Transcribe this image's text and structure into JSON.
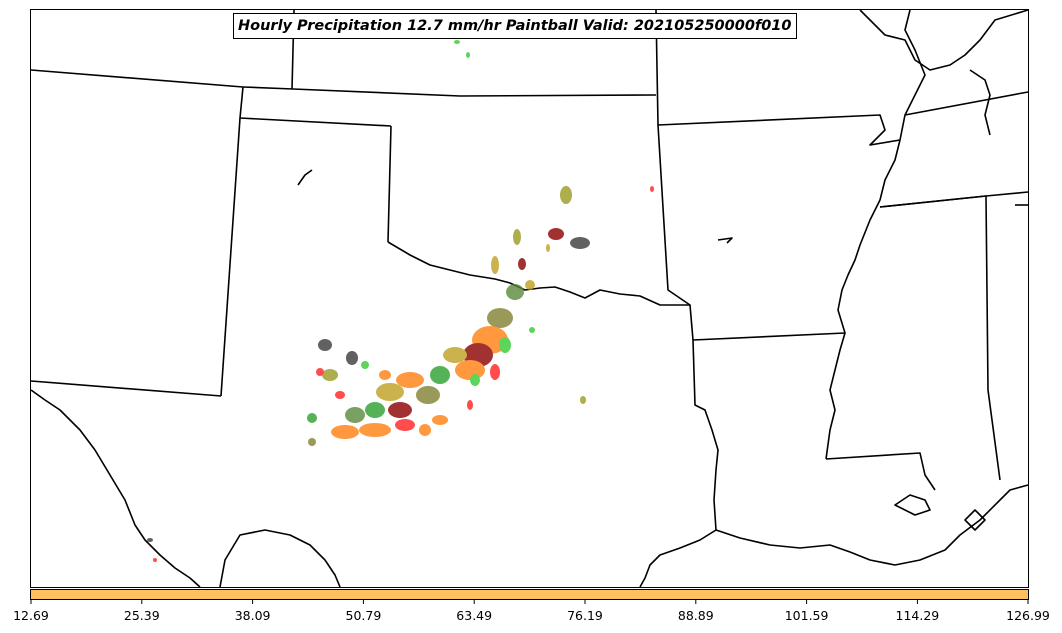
{
  "title": "Hourly Precipitation 12.7 mm/hr Paintball Valid: 202105250000f010",
  "colorbar": {
    "color": "#ffc060",
    "ticks": [
      "12.69",
      "25.39",
      "38.09",
      "50.79",
      "63.49",
      "76.19",
      "88.89",
      "101.59",
      "114.29",
      "126.99"
    ]
  },
  "colors": {
    "map_lines": "#000000",
    "paintball_members": [
      "#ff2020",
      "#ff7f0e",
      "#2ca02c",
      "#8b0000",
      "#9a9a20",
      "#808030",
      "#3a3a3a",
      "#5a8a3a",
      "#33cc33",
      "#c0a020"
    ]
  },
  "map": {
    "region": "Southern Plains / South Central United States",
    "borders": "state boundaries and coastline"
  }
}
